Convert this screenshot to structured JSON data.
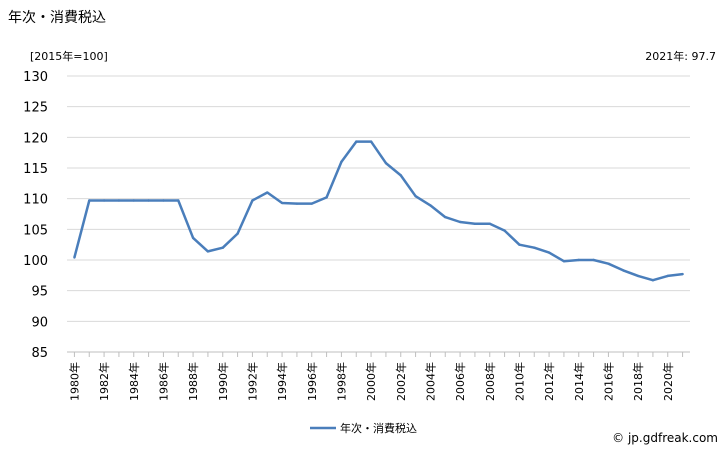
{
  "chart_data": {
    "type": "line",
    "title": "年次・消費税込",
    "unit_label": "[2015年=100]",
    "annotation": "2021年: 97.7",
    "legend": "年次・消費税込",
    "credit": "© jp.gdfreak.com",
    "ylim": [
      85,
      130
    ],
    "y_ticks": [
      "130",
      "125",
      "120",
      "115",
      "110",
      "105",
      "100",
      "95",
      "90",
      "85"
    ],
    "x_tick_labels": [
      "1980年",
      "1982年",
      "1984年",
      "1986年",
      "1988年",
      "1990年",
      "1992年",
      "1994年",
      "1996年",
      "1998年",
      "2000年",
      "2002年",
      "2004年",
      "2006年",
      "2008年",
      "2010年",
      "2012年",
      "2014年",
      "2016年",
      "2018年",
      "2020年"
    ],
    "grid": "horizontal",
    "line_color": "#4a7ebb",
    "grid_color": "#d9d9d9",
    "x": [
      1980,
      1981,
      1982,
      1983,
      1984,
      1985,
      1986,
      1987,
      1988,
      1989,
      1990,
      1991,
      1992,
      1993,
      1994,
      1995,
      1996,
      1997,
      1998,
      1999,
      2000,
      2001,
      2002,
      2003,
      2004,
      2005,
      2006,
      2007,
      2008,
      2009,
      2010,
      2011,
      2012,
      2013,
      2014,
      2015,
      2016,
      2017,
      2018,
      2019,
      2020,
      2021
    ],
    "values": [
      100.4,
      109.7,
      109.7,
      109.7,
      109.7,
      109.7,
      109.7,
      109.7,
      103.6,
      101.4,
      102.0,
      104.3,
      109.7,
      111.0,
      109.3,
      109.2,
      109.2,
      110.2,
      116.0,
      119.3,
      119.3,
      115.8,
      113.8,
      110.4,
      108.9,
      107.0,
      106.2,
      105.9,
      105.9,
      104.8,
      102.5,
      102.0,
      101.2,
      99.8,
      100.0,
      100.0,
      99.4,
      98.3,
      97.4,
      96.7,
      97.4,
      97.7
    ]
  }
}
